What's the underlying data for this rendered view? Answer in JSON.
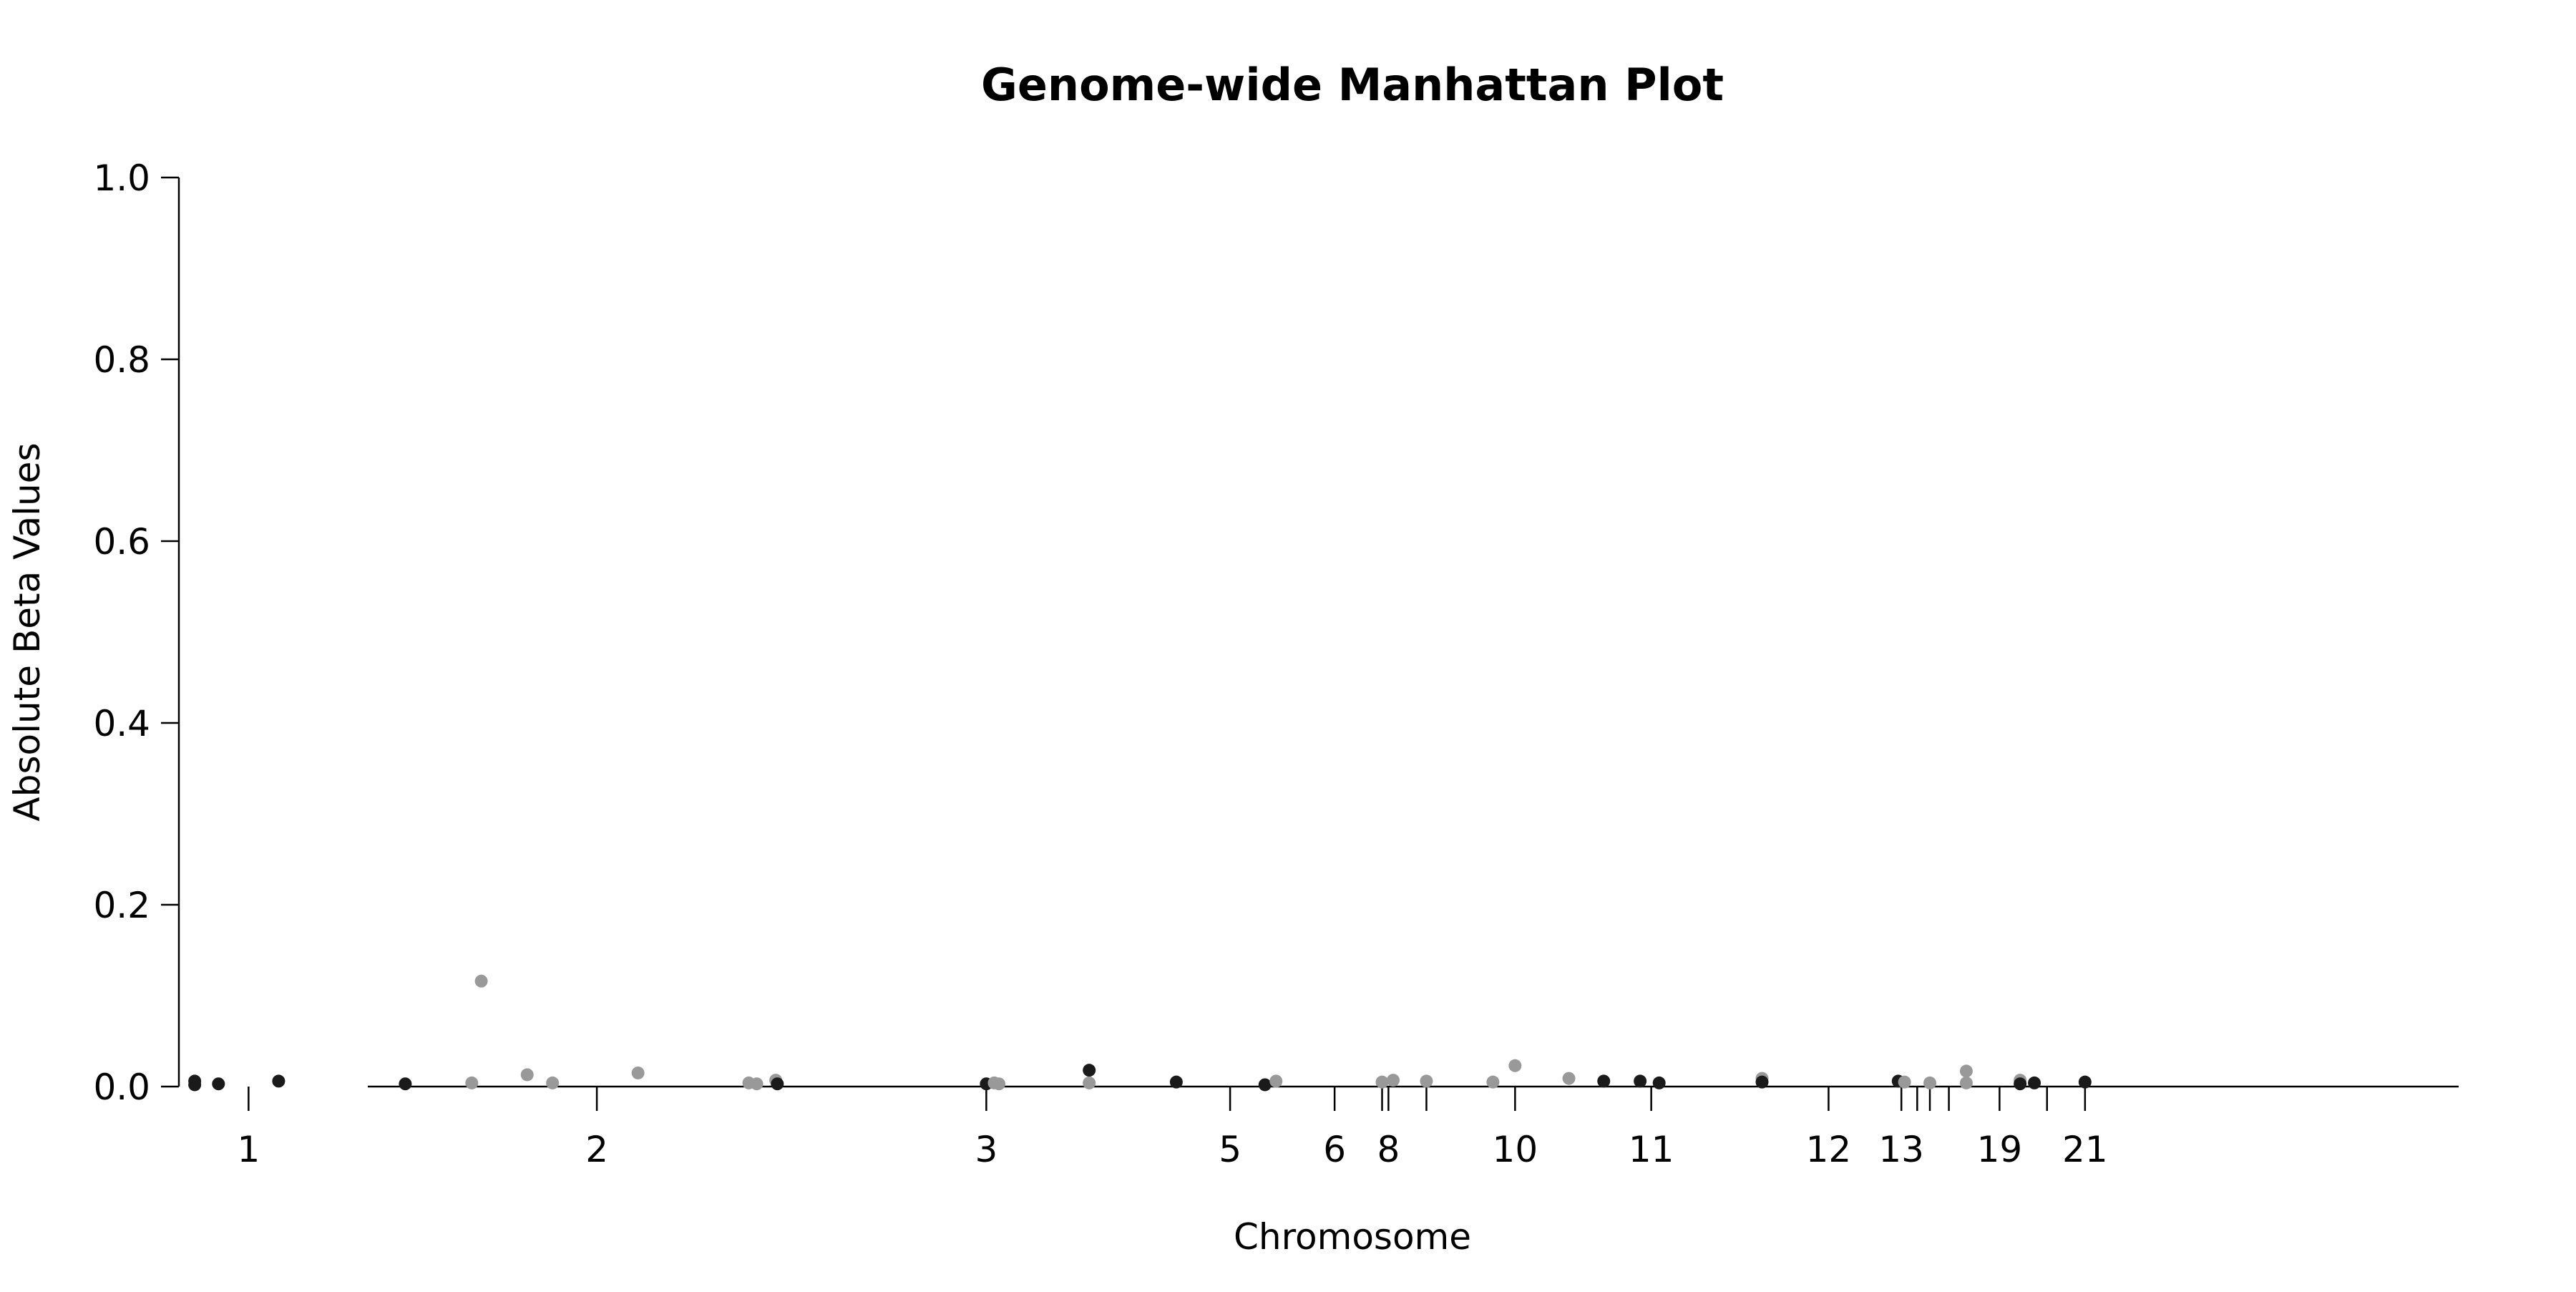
{
  "chart_data": {
    "type": "scatter",
    "title": "Genome-wide Manhattan Plot",
    "xlabel": "Chromosome",
    "ylabel": "Absolute Beta Values",
    "ylim": [
      0,
      1
    ],
    "yticks": [
      "0.0",
      "0.2",
      "0.4",
      "0.6",
      "0.8",
      "1.0"
    ],
    "xlim": [
      -4.4,
      139.6
    ],
    "xticks": [
      {
        "pos": 0,
        "label": "1"
      },
      {
        "pos": 22,
        "label": "2"
      },
      {
        "pos": 46.6,
        "label": "3"
      },
      {
        "pos": 62,
        "label": "5"
      },
      {
        "pos": 68.6,
        "label": "6"
      },
      {
        "pos": 71.6,
        "label": ""
      },
      {
        "pos": 72,
        "label": "8"
      },
      {
        "pos": 74.4,
        "label": ""
      },
      {
        "pos": 80,
        "label": "10"
      },
      {
        "pos": 88.6,
        "label": "11"
      },
      {
        "pos": 99.8,
        "label": "12"
      },
      {
        "pos": 104.4,
        "label": "13"
      },
      {
        "pos": 105.4,
        "label": ""
      },
      {
        "pos": 106.2,
        "label": ""
      },
      {
        "pos": 107.4,
        "label": ""
      },
      {
        "pos": 110.6,
        "label": "19"
      },
      {
        "pos": 113.6,
        "label": ""
      },
      {
        "pos": 116,
        "label": "21"
      }
    ],
    "grid": false,
    "legend": "none",
    "colors": {
      "dark": "#1a1a1a",
      "light": "#999999"
    },
    "points": [
      {
        "x": -3.4,
        "y": 0.006,
        "c": "dark"
      },
      {
        "x": -3.4,
        "y": 0.002,
        "c": "dark"
      },
      {
        "x": -1.9,
        "y": 0.003,
        "c": "dark"
      },
      {
        "x": 1.9,
        "y": 0.006,
        "c": "dark"
      },
      {
        "x": 9.9,
        "y": 0.003,
        "c": "dark"
      },
      {
        "x": 14.1,
        "y": 0.004,
        "c": "light"
      },
      {
        "x": 14.7,
        "y": 0.116,
        "c": "light"
      },
      {
        "x": 17.6,
        "y": 0.013,
        "c": "light"
      },
      {
        "x": 19.2,
        "y": 0.004,
        "c": "light"
      },
      {
        "x": 24.6,
        "y": 0.015,
        "c": "light"
      },
      {
        "x": 31.6,
        "y": 0.004,
        "c": "light"
      },
      {
        "x": 32.1,
        "y": 0.003,
        "c": "light"
      },
      {
        "x": 33.3,
        "y": 0.007,
        "c": "light"
      },
      {
        "x": 33.4,
        "y": 0.003,
        "c": "dark"
      },
      {
        "x": 46.6,
        "y": 0.003,
        "c": "dark"
      },
      {
        "x": 47.1,
        "y": 0.004,
        "c": "light"
      },
      {
        "x": 47.4,
        "y": 0.003,
        "c": "light"
      },
      {
        "x": 53.1,
        "y": 0.018,
        "c": "dark"
      },
      {
        "x": 53.1,
        "y": 0.004,
        "c": "light"
      },
      {
        "x": 58.6,
        "y": 0.005,
        "c": "dark"
      },
      {
        "x": 64.2,
        "y": 0.002,
        "c": "dark"
      },
      {
        "x": 64.9,
        "y": 0.006,
        "c": "light"
      },
      {
        "x": 71.6,
        "y": 0.005,
        "c": "light"
      },
      {
        "x": 72.3,
        "y": 0.007,
        "c": "light"
      },
      {
        "x": 74.4,
        "y": 0.006,
        "c": "light"
      },
      {
        "x": 78.6,
        "y": 0.005,
        "c": "light"
      },
      {
        "x": 80,
        "y": 0.023,
        "c": "light"
      },
      {
        "x": 83.4,
        "y": 0.009,
        "c": "light"
      },
      {
        "x": 85.6,
        "y": 0.006,
        "c": "dark"
      },
      {
        "x": 87.9,
        "y": 0.006,
        "c": "dark"
      },
      {
        "x": 89.1,
        "y": 0.004,
        "c": "dark"
      },
      {
        "x": 95.6,
        "y": 0.009,
        "c": "light"
      },
      {
        "x": 95.6,
        "y": 0.005,
        "c": "dark"
      },
      {
        "x": 104.2,
        "y": 0.006,
        "c": "dark"
      },
      {
        "x": 104.6,
        "y": 0.005,
        "c": "light"
      },
      {
        "x": 106.2,
        "y": 0.004,
        "c": "light"
      },
      {
        "x": 108.5,
        "y": 0.017,
        "c": "light"
      },
      {
        "x": 108.5,
        "y": 0.004,
        "c": "light"
      },
      {
        "x": 111.9,
        "y": 0.007,
        "c": "light"
      },
      {
        "x": 111.9,
        "y": 0.003,
        "c": "dark"
      },
      {
        "x": 112.8,
        "y": 0.004,
        "c": "dark"
      },
      {
        "x": 116,
        "y": 0.005,
        "c": "dark"
      }
    ]
  }
}
